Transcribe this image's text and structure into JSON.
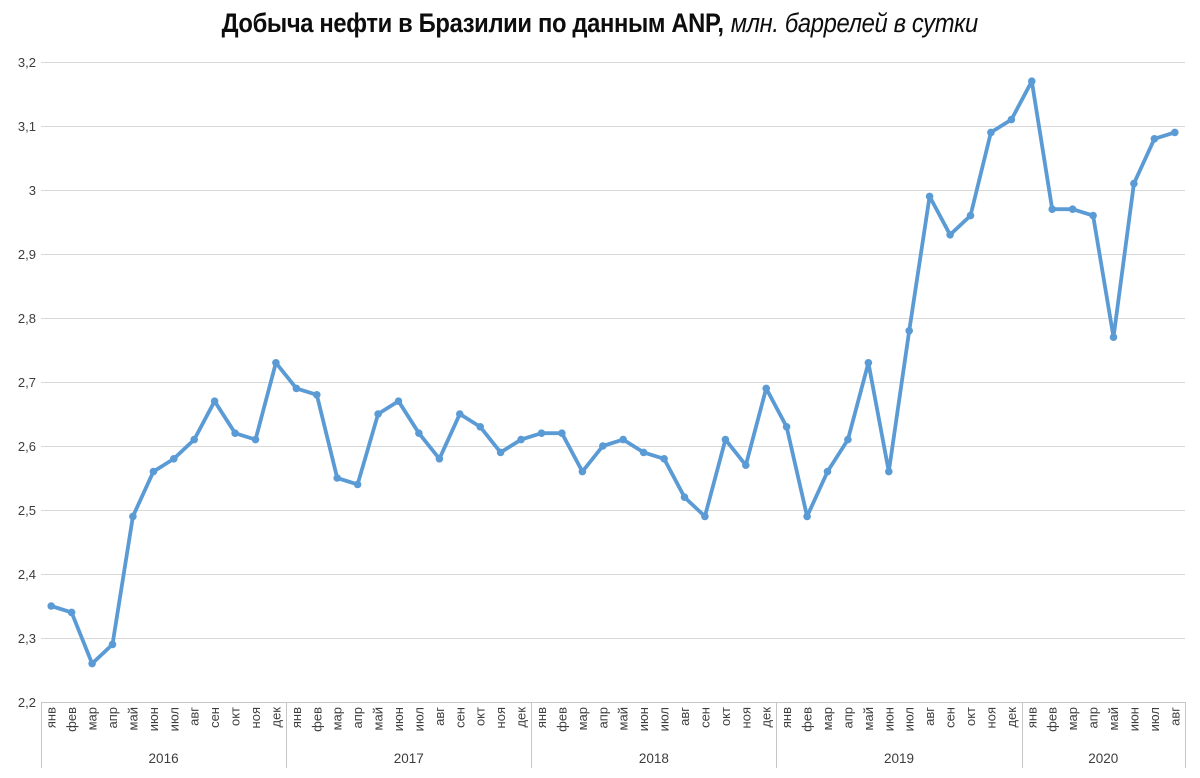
{
  "title": {
    "main": "Добыча нефти в Бразилии по данным ANP,",
    "sub": "млн. баррелей в сутки"
  },
  "chart_data": {
    "type": "line",
    "title": "Добыча нефти в Бразилии по данным ANP, млн. баррелей в сутки",
    "ylabel": "",
    "xlabel": "",
    "ylim": [
      2.2,
      3.2
    ],
    "ytick_step": 0.1,
    "ytick_labels": [
      "2,2",
      "2,3",
      "2,4",
      "2,5",
      "2,6",
      "2,7",
      "2,8",
      "2,9",
      "3",
      "3,1",
      "3,2"
    ],
    "grid": true,
    "legend": "none",
    "line_color": "#5B9BD5",
    "grid_color": "#D9D9D9",
    "axis_line_color": "#C6C6C6",
    "label_color": "#3D3D3D",
    "year_groups": [
      {
        "year": "2016",
        "months": [
          "янв",
          "фев",
          "мар",
          "апр",
          "май",
          "июн",
          "июл",
          "авг",
          "сен",
          "окт",
          "ноя",
          "дек"
        ],
        "values": [
          2.35,
          2.34,
          2.26,
          2.29,
          2.49,
          2.56,
          2.58,
          2.61,
          2.67,
          2.62,
          2.61,
          2.73
        ]
      },
      {
        "year": "2017",
        "months": [
          "янв",
          "фев",
          "мар",
          "апр",
          "май",
          "июн",
          "июл",
          "авг",
          "сен",
          "окт",
          "ноя",
          "дек"
        ],
        "values": [
          2.69,
          2.68,
          2.55,
          2.54,
          2.65,
          2.67,
          2.62,
          2.58,
          2.65,
          2.63,
          2.59,
          2.61
        ]
      },
      {
        "year": "2018",
        "months": [
          "янв",
          "фев",
          "мар",
          "апр",
          "май",
          "июн",
          "июл",
          "авг",
          "сен",
          "окт",
          "ноя",
          "дек"
        ],
        "values": [
          2.62,
          2.62,
          2.56,
          2.6,
          2.61,
          2.59,
          2.58,
          2.52,
          2.49,
          2.61,
          2.57,
          2.69
        ]
      },
      {
        "year": "2019",
        "months": [
          "янв",
          "фев",
          "мар",
          "апр",
          "май",
          "июн",
          "июл",
          "авг",
          "сен",
          "окт",
          "ноя",
          "дек"
        ],
        "values": [
          2.63,
          2.49,
          2.56,
          2.61,
          2.73,
          2.56,
          2.78,
          2.99,
          2.93,
          2.96,
          3.09,
          3.11
        ]
      },
      {
        "year": "2020",
        "months": [
          "янв",
          "фев",
          "мар",
          "апр",
          "май",
          "июн",
          "июл",
          "авг"
        ],
        "values": [
          3.17,
          2.97,
          2.97,
          2.96,
          2.77,
          3.01,
          3.08,
          3.09
        ]
      }
    ]
  }
}
